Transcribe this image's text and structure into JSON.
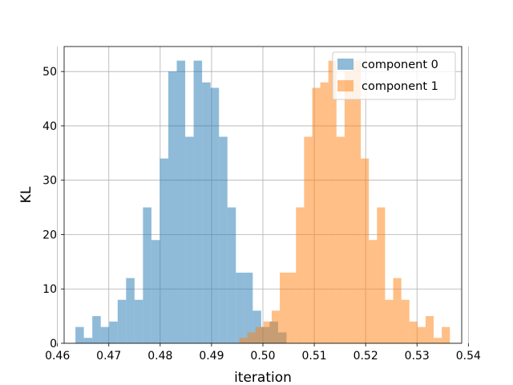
{
  "chart_data": {
    "type": "histogram",
    "title": "",
    "xlabel": "iteration",
    "ylabel": "KL",
    "xlim": [
      0.4613,
      0.5387
    ],
    "ylim": [
      0,
      54.6
    ],
    "x_ticks": [
      0.46,
      0.47,
      0.48,
      0.49,
      0.5,
      0.51,
      0.52,
      0.53,
      0.54
    ],
    "x_tick_labels": [
      "0.46",
      "0.47",
      "0.48",
      "0.49",
      "0.50",
      "0.51",
      "0.52",
      "0.53",
      "0.54"
    ],
    "y_ticks": [
      0,
      10,
      20,
      30,
      40,
      50
    ],
    "y_tick_labels": [
      "0",
      "10",
      "20",
      "30",
      "40",
      "50"
    ],
    "grid": true,
    "legend_position": "top-right",
    "bins": 40,
    "series": [
      {
        "name": "component 0",
        "color": "#1f77b4",
        "alpha": 0.5,
        "range": [
          0.4635,
          0.5046
        ],
        "counts": [
          3,
          1,
          5,
          3,
          4,
          8,
          12,
          8,
          25,
          19,
          34,
          50,
          52,
          38,
          52,
          48,
          47,
          38,
          25,
          13,
          13,
          6,
          3,
          4,
          2
        ]
      },
      {
        "name": "component 1",
        "color": "#ff7f0e",
        "alpha": 0.5,
        "range": [
          0.4954,
          0.5364
        ],
        "counts": [
          1,
          2,
          3,
          4,
          6,
          13,
          13,
          25,
          38,
          47,
          48,
          52,
          38,
          50,
          52,
          34,
          19,
          25,
          8,
          12,
          8,
          4,
          3,
          5,
          1,
          3
        ]
      }
    ]
  }
}
